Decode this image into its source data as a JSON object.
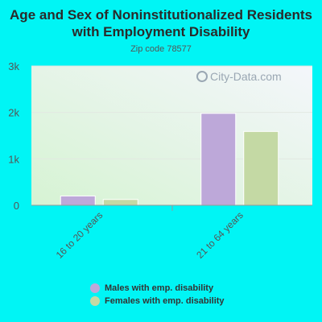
{
  "chart_data": {
    "type": "bar",
    "title": "Age and Sex of Noninstitutionalized Residents with Employment Disability",
    "subtitle": "Zip code 78577",
    "categories": [
      "16 to 20 years",
      "21 to 64 years"
    ],
    "series": [
      {
        "name": "Males with emp. disability",
        "values": [
          200,
          1980
        ],
        "color": "#bda8d9"
      },
      {
        "name": "Females with emp. disability",
        "values": [
          125,
          1590
        ],
        "color": "#c4d9a4"
      }
    ],
    "y_ticks": [
      0,
      1000,
      2000,
      3000
    ],
    "y_tick_labels": [
      "0",
      "1k",
      "2k",
      "3k"
    ],
    "ylim": [
      0,
      3000
    ],
    "grid": true,
    "legend_position": "bottom"
  },
  "watermark": "City-Data.com"
}
